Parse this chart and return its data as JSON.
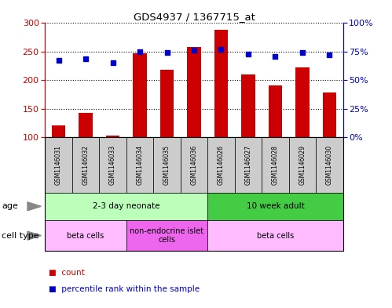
{
  "title": "GDS4937 / 1367715_at",
  "samples": [
    "GSM1146031",
    "GSM1146032",
    "GSM1146033",
    "GSM1146034",
    "GSM1146035",
    "GSM1146036",
    "GSM1146026",
    "GSM1146027",
    "GSM1146028",
    "GSM1146029",
    "GSM1146030"
  ],
  "counts": [
    120,
    142,
    103,
    247,
    218,
    258,
    288,
    210,
    190,
    222,
    178
  ],
  "percentiles": [
    67,
    69,
    65,
    75,
    74,
    76,
    77,
    73,
    71,
    74,
    72
  ],
  "ylim_left": [
    100,
    300
  ],
  "ylim_right": [
    0,
    100
  ],
  "yticks_left": [
    100,
    150,
    200,
    250,
    300
  ],
  "yticks_right": [
    0,
    25,
    50,
    75,
    100
  ],
  "ytick_labels_right": [
    "0%",
    "25%",
    "50%",
    "75%",
    "100%"
  ],
  "bar_color": "#cc0000",
  "dot_color": "#0000cc",
  "bar_width": 0.5,
  "age_groups": [
    {
      "label": "2-3 day neonate",
      "start": 0,
      "end": 6,
      "color": "#bbffbb"
    },
    {
      "label": "10 week adult",
      "start": 6,
      "end": 11,
      "color": "#44cc44"
    }
  ],
  "cell_type_groups": [
    {
      "label": "beta cells",
      "start": 0,
      "end": 3,
      "color": "#ffbbff"
    },
    {
      "label": "non-endocrine islet\ncells",
      "start": 3,
      "end": 6,
      "color": "#ee66ee"
    },
    {
      "label": "beta cells",
      "start": 6,
      "end": 11,
      "color": "#ffbbff"
    }
  ],
  "sample_bg_color": "#cccccc",
  "legend_red_label": "count",
  "legend_blue_label": "percentile rank within the sample",
  "grid_yticks": [
    150,
    200,
    250
  ],
  "age_label": "age",
  "cell_type_label": "cell type"
}
